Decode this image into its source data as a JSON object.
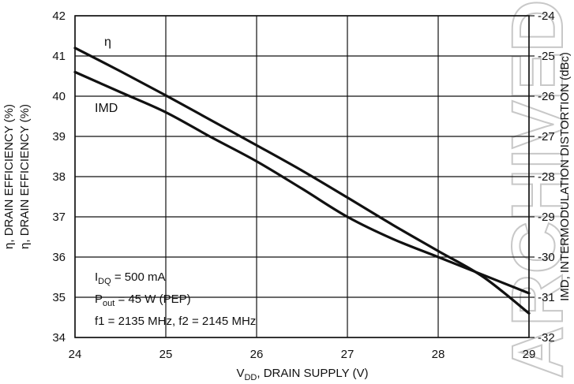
{
  "chart_data": {
    "type": "line",
    "xlabel": {
      "main": "V",
      "sub": "DD",
      "rest": ", DRAIN SUPPLY (V)"
    },
    "ylabel_left": [
      "η, DRAIN EFFICIENCY (%)",
      "η, DRAIN EFFICIENCY (%)"
    ],
    "ylabel_right": "IMD, INTERMODULATION DISTORTION (dBc)",
    "xlim": [
      24,
      29
    ],
    "ylim_left": [
      34,
      42
    ],
    "ylim_right": [
      -32,
      -24
    ],
    "x_ticks": [
      "24",
      "25",
      "26",
      "27",
      "28",
      "29"
    ],
    "y_left_ticks": [
      "34",
      "35",
      "36",
      "37",
      "38",
      "39",
      "40",
      "41",
      "42"
    ],
    "y_right_ticks": [
      "-32",
      "-31",
      "-30",
      "-29",
      "-28",
      "-27",
      "-26",
      "-25",
      "-24"
    ],
    "grid": true,
    "series": [
      {
        "name": "η",
        "axis": "left",
        "x": [
          24,
          24.5,
          25,
          25.5,
          26,
          26.5,
          27,
          27.5,
          28,
          28.5,
          29
        ],
        "y": [
          41.2,
          40.62,
          40.02,
          39.4,
          38.78,
          38.15,
          37.48,
          36.8,
          36.15,
          35.5,
          34.6
        ]
      },
      {
        "name": "IMD",
        "axis": "right",
        "x": [
          24,
          24.5,
          25,
          25.5,
          26,
          26.5,
          27,
          27.5,
          28,
          28.5,
          29
        ],
        "y": [
          -25.4,
          -25.9,
          -26.4,
          -27.02,
          -27.62,
          -28.3,
          -29.0,
          -29.55,
          -30.0,
          -30.45,
          -30.9
        ]
      }
    ],
    "series_labels": [
      "η",
      "IMD"
    ],
    "annotations": [
      {
        "main": "I",
        "sub": "DQ",
        "rest": " = 500 mA"
      },
      {
        "main": "P",
        "sub": "out",
        "rest": " = 45 W (PEP)"
      },
      {
        "main": "f1 = 2135 MHz, f2 = 2145 MHz",
        "sub": "",
        "rest": ""
      }
    ],
    "watermark": "ARCHIVED"
  }
}
